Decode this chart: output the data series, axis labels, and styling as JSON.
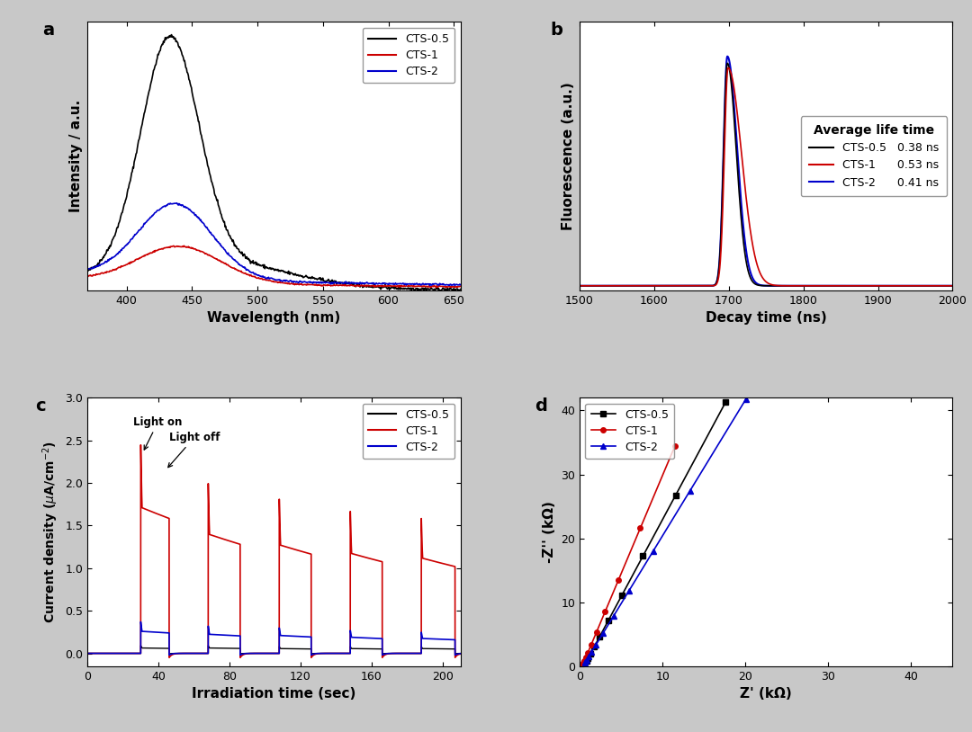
{
  "panel_a": {
    "label": "a",
    "xlabel": "Wavelength (nm)",
    "ylabel": "Intensity / a.u.",
    "xlim": [
      370,
      655
    ],
    "xticks": [
      400,
      450,
      500,
      550,
      600,
      650
    ],
    "colors": {
      "CTS-0.5": "#000000",
      "CTS-1": "#cc0000",
      "CTS-2": "#0000cc"
    }
  },
  "panel_b": {
    "label": "b",
    "xlabel": "Decay time (ns)",
    "ylabel": "Fluorescence (a.u.)",
    "xlim": [
      1500,
      2000
    ],
    "xticks": [
      1500,
      1600,
      1700,
      1800,
      1900,
      2000
    ],
    "colors": {
      "CTS-0.5": "#000000",
      "CTS-1": "#cc0000",
      "CTS-2": "#0000cc"
    },
    "legend_title": "Average life time",
    "lifetimes": {
      "CTS-0.5": "0.38 ns",
      "CTS-1": "0.53 ns",
      "CTS-2": "0.41 ns"
    }
  },
  "panel_c": {
    "label": "c",
    "xlabel": "Irradiation time (sec)",
    "ylabel": "Current density",
    "xlim": [
      0,
      210
    ],
    "ylim": [
      -0.15,
      3.0
    ],
    "yticks": [
      0.0,
      0.5,
      1.0,
      1.5,
      2.0,
      2.5,
      3.0
    ],
    "xticks": [
      0,
      40,
      80,
      120,
      160,
      200
    ],
    "colors": {
      "CTS-0.5": "#000000",
      "CTS-1": "#cc0000",
      "CTS-2": "#0000cc"
    }
  },
  "panel_d": {
    "label": "d",
    "xlabel": "Z' (kΩ)",
    "ylabel": "-Z'' (kΩ)",
    "xlim": [
      0,
      45
    ],
    "ylim": [
      0,
      42
    ],
    "xticks": [
      0,
      10,
      20,
      30,
      40
    ],
    "yticks": [
      0,
      10,
      20,
      30,
      40
    ],
    "colors": {
      "CTS-0.5": "#000000",
      "CTS-1": "#cc0000",
      "CTS-2": "#0000cc"
    },
    "markers": {
      "CTS-0.5": "s",
      "CTS-1": "o",
      "CTS-2": "^"
    }
  },
  "bg_color": "#ffffff",
  "outer_bg": "#c8c8c8"
}
